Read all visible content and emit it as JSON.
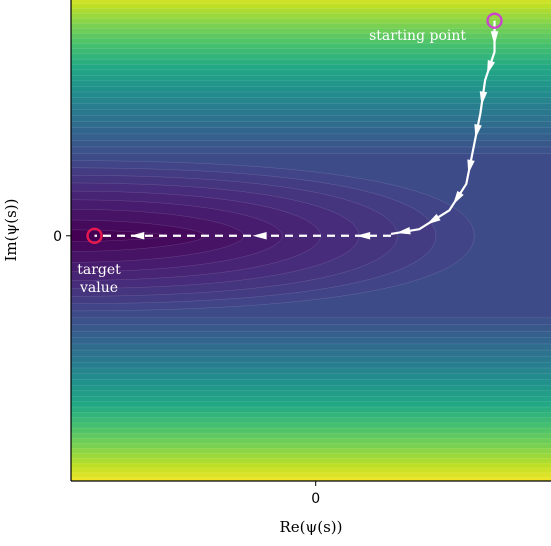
{
  "chart_data": {
    "type": "contour",
    "title": "",
    "xlabel": "Re(ψ(s))",
    "ylabel": "Im(ψ(s))",
    "xlim": [
      -2.6,
      2.5
    ],
    "ylim": [
      -2.6,
      2.5
    ],
    "x_ticks": [
      0
    ],
    "y_ticks": [
      0
    ],
    "tick_labels": {
      "x": "0",
      "y": "0"
    },
    "colormap": "viridis",
    "contour_levels": 40,
    "grid": false,
    "legend": "none",
    "series": [
      {
        "style": "solid-with-arrows",
        "color": "#ffffff",
        "points": [
          [
            1.9,
            2.28
          ],
          [
            1.9,
            1.95
          ],
          [
            1.8,
            1.65
          ],
          [
            1.75,
            1.3
          ],
          [
            1.68,
            0.95
          ],
          [
            1.6,
            0.55
          ],
          [
            1.42,
            0.27
          ],
          [
            1.1,
            0.07
          ],
          [
            0.8,
            0.02
          ]
        ]
      },
      {
        "style": "dashed-with-arrows",
        "color": "#ffffff",
        "points": [
          [
            0.8,
            0.0
          ],
          [
            0.25,
            0.0
          ],
          [
            -1.4,
            0.0
          ],
          [
            -2.35,
            0.0
          ]
        ]
      }
    ],
    "markers": [
      {
        "label": "starting point",
        "x": 1.9,
        "y": 2.28,
        "color": "#cc44cc"
      },
      {
        "label": "target value",
        "x": -2.35,
        "y": 0.0,
        "color": "#e8194f"
      }
    ],
    "annotations": {
      "start": "starting point",
      "target_line1": "target",
      "target_line2": "value"
    }
  }
}
